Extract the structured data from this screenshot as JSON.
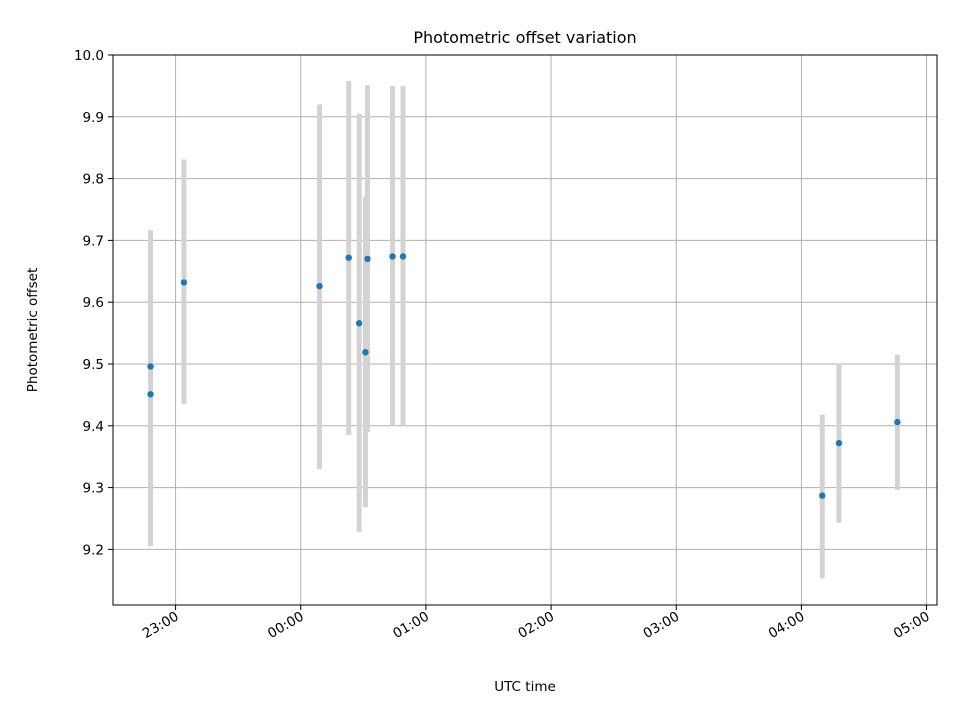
{
  "chart_data": {
    "type": "scatter",
    "title": "Photometric offset variation",
    "xlabel": "UTC time",
    "ylabel": "Photometric offset",
    "x_ticks": [
      "23:00",
      "00:00",
      "01:00",
      "02:00",
      "03:00",
      "04:00",
      "05:00"
    ],
    "y_ticks": [
      "9.2",
      "9.3",
      "9.4",
      "9.5",
      "9.6",
      "9.7",
      "9.8",
      "9.9",
      "10.0"
    ],
    "xlim": [
      "22:30",
      "05:05"
    ],
    "ylim": [
      9.11,
      10.0
    ],
    "grid": true,
    "point_color": "#1f77b4",
    "errorbar_color": "#d3d3d3",
    "points": [
      {
        "time": "22:48",
        "y": 9.496,
        "yerr_low": 9.275,
        "yerr_high": 9.717
      },
      {
        "time": "22:48",
        "y": 9.451,
        "yerr_low": 9.205,
        "yerr_high": 9.697
      },
      {
        "time": "23:04",
        "y": 9.632,
        "yerr_low": 9.435,
        "yerr_high": 9.831
      },
      {
        "time": "00:09",
        "y": 9.626,
        "yerr_low": 9.33,
        "yerr_high": 9.92
      },
      {
        "time": "00:23",
        "y": 9.672,
        "yerr_low": 9.385,
        "yerr_high": 9.958
      },
      {
        "time": "00:28",
        "y": 9.566,
        "yerr_low": 9.228,
        "yerr_high": 9.905
      },
      {
        "time": "00:31",
        "y": 9.519,
        "yerr_low": 9.268,
        "yerr_high": 9.771
      },
      {
        "time": "00:32",
        "y": 9.67,
        "yerr_low": 9.39,
        "yerr_high": 9.951
      },
      {
        "time": "00:44",
        "y": 9.674,
        "yerr_low": 9.4,
        "yerr_high": 9.95
      },
      {
        "time": "00:49",
        "y": 9.674,
        "yerr_low": 9.4,
        "yerr_high": 9.95
      },
      {
        "time": "04:10",
        "y": 9.287,
        "yerr_low": 9.153,
        "yerr_high": 9.418
      },
      {
        "time": "04:18",
        "y": 9.372,
        "yerr_low": 9.243,
        "yerr_high": 9.501
      },
      {
        "time": "04:46",
        "y": 9.406,
        "yerr_low": 9.296,
        "yerr_high": 9.515
      }
    ]
  }
}
